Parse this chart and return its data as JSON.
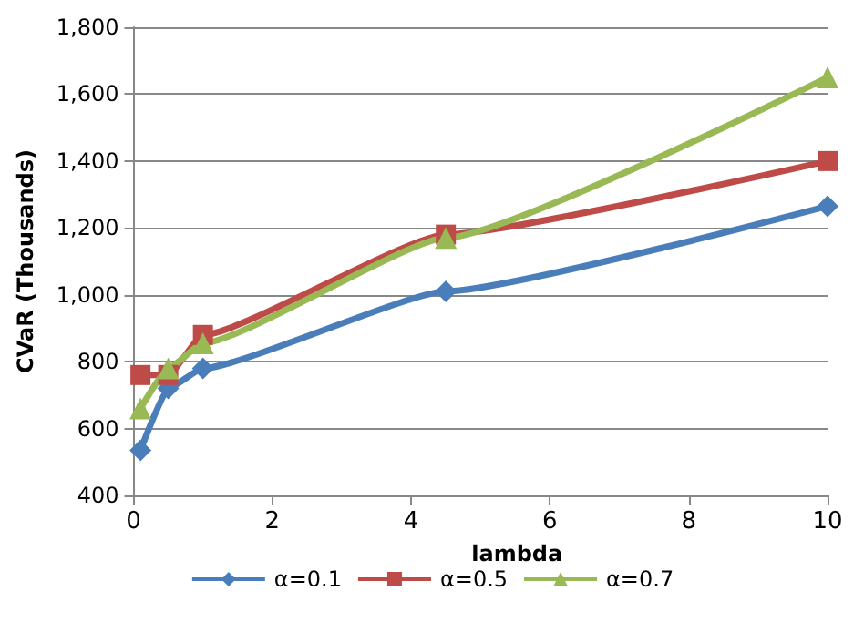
{
  "chart_data": {
    "type": "line",
    "xlabel": "lambda",
    "ylabel": "CVaR (Thousands)",
    "x": [
      0.1,
      0.5,
      1,
      4.5,
      10
    ],
    "series": [
      {
        "name": "α=0.1",
        "color": "#4a7ebb",
        "marker": "diamond",
        "values": [
          535,
          720,
          780,
          1010,
          1265
        ]
      },
      {
        "name": "α=0.5",
        "color": "#be4b48",
        "marker": "square",
        "values": [
          760,
          760,
          880,
          1180,
          1400
        ]
      },
      {
        "name": "α=0.7",
        "color": "#98b954",
        "marker": "triangle",
        "values": [
          660,
          780,
          855,
          1170,
          1650
        ]
      }
    ],
    "xlim": [
      0,
      10
    ],
    "xticks": [
      0,
      2,
      4,
      6,
      8,
      10
    ],
    "ylim": [
      400,
      1800
    ],
    "yticks": [
      400,
      600,
      800,
      {
        "value": 1000,
        "label": "1,000"
      },
      {
        "value": 1200,
        "label": "1,200"
      },
      {
        "value": 1400,
        "label": "1,400"
      },
      {
        "value": 1600,
        "label": "1,600"
      },
      {
        "value": 1800,
        "label": "1,800"
      }
    ],
    "grid": "y",
    "legend": "bottom"
  }
}
